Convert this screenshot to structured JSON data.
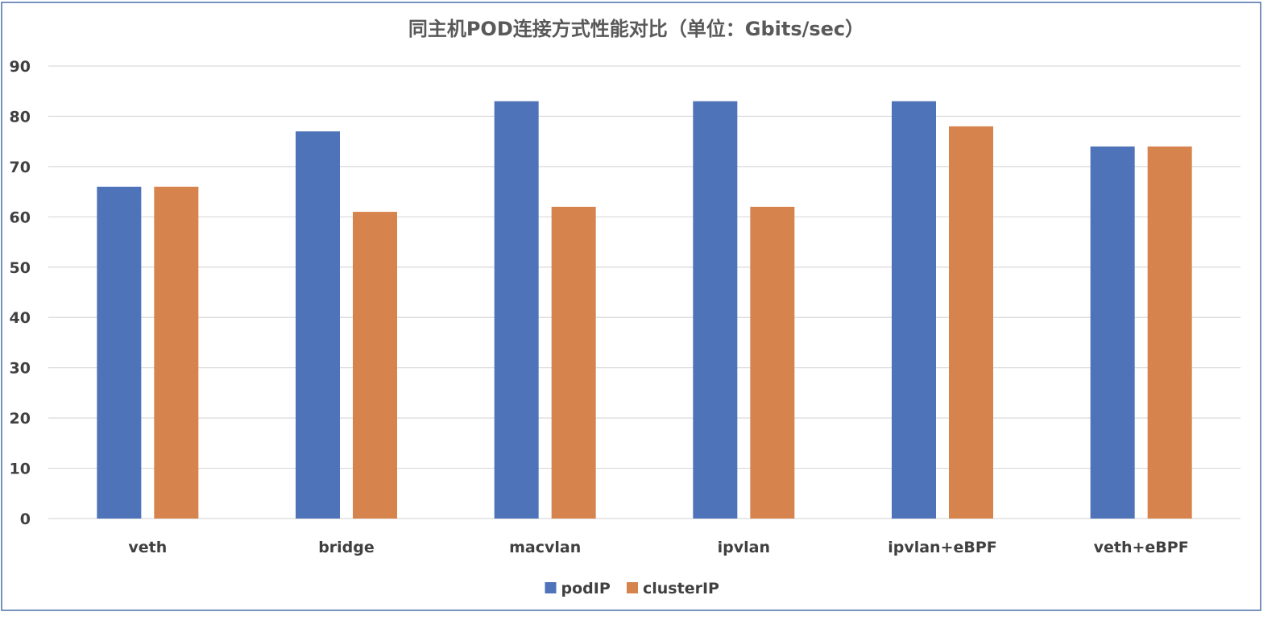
{
  "chart_data": {
    "type": "bar",
    "title": "同主机POD连接方式性能对比（单位：Gbits/sec）",
    "xlabel": "",
    "ylabel": "",
    "categories": [
      "veth",
      "bridge",
      "macvlan",
      "ipvlan",
      "ipvlan+eBPF",
      "veth+eBPF"
    ],
    "series": [
      {
        "name": "podIP",
        "values": [
          66,
          77,
          83,
          83,
          83,
          74
        ],
        "color": "#4e73b9"
      },
      {
        "name": "clusterIP",
        "values": [
          66,
          61,
          62,
          62,
          78,
          74
        ],
        "color": "#d6834d"
      }
    ],
    "ylim": [
      0,
      90
    ],
    "yticks": [
      0,
      10,
      20,
      30,
      40,
      50,
      60,
      70,
      80,
      90
    ],
    "grid": true,
    "legend_position": "bottom",
    "gridline_color": "#d9d9d9",
    "border_color": "#4a6fa5"
  }
}
